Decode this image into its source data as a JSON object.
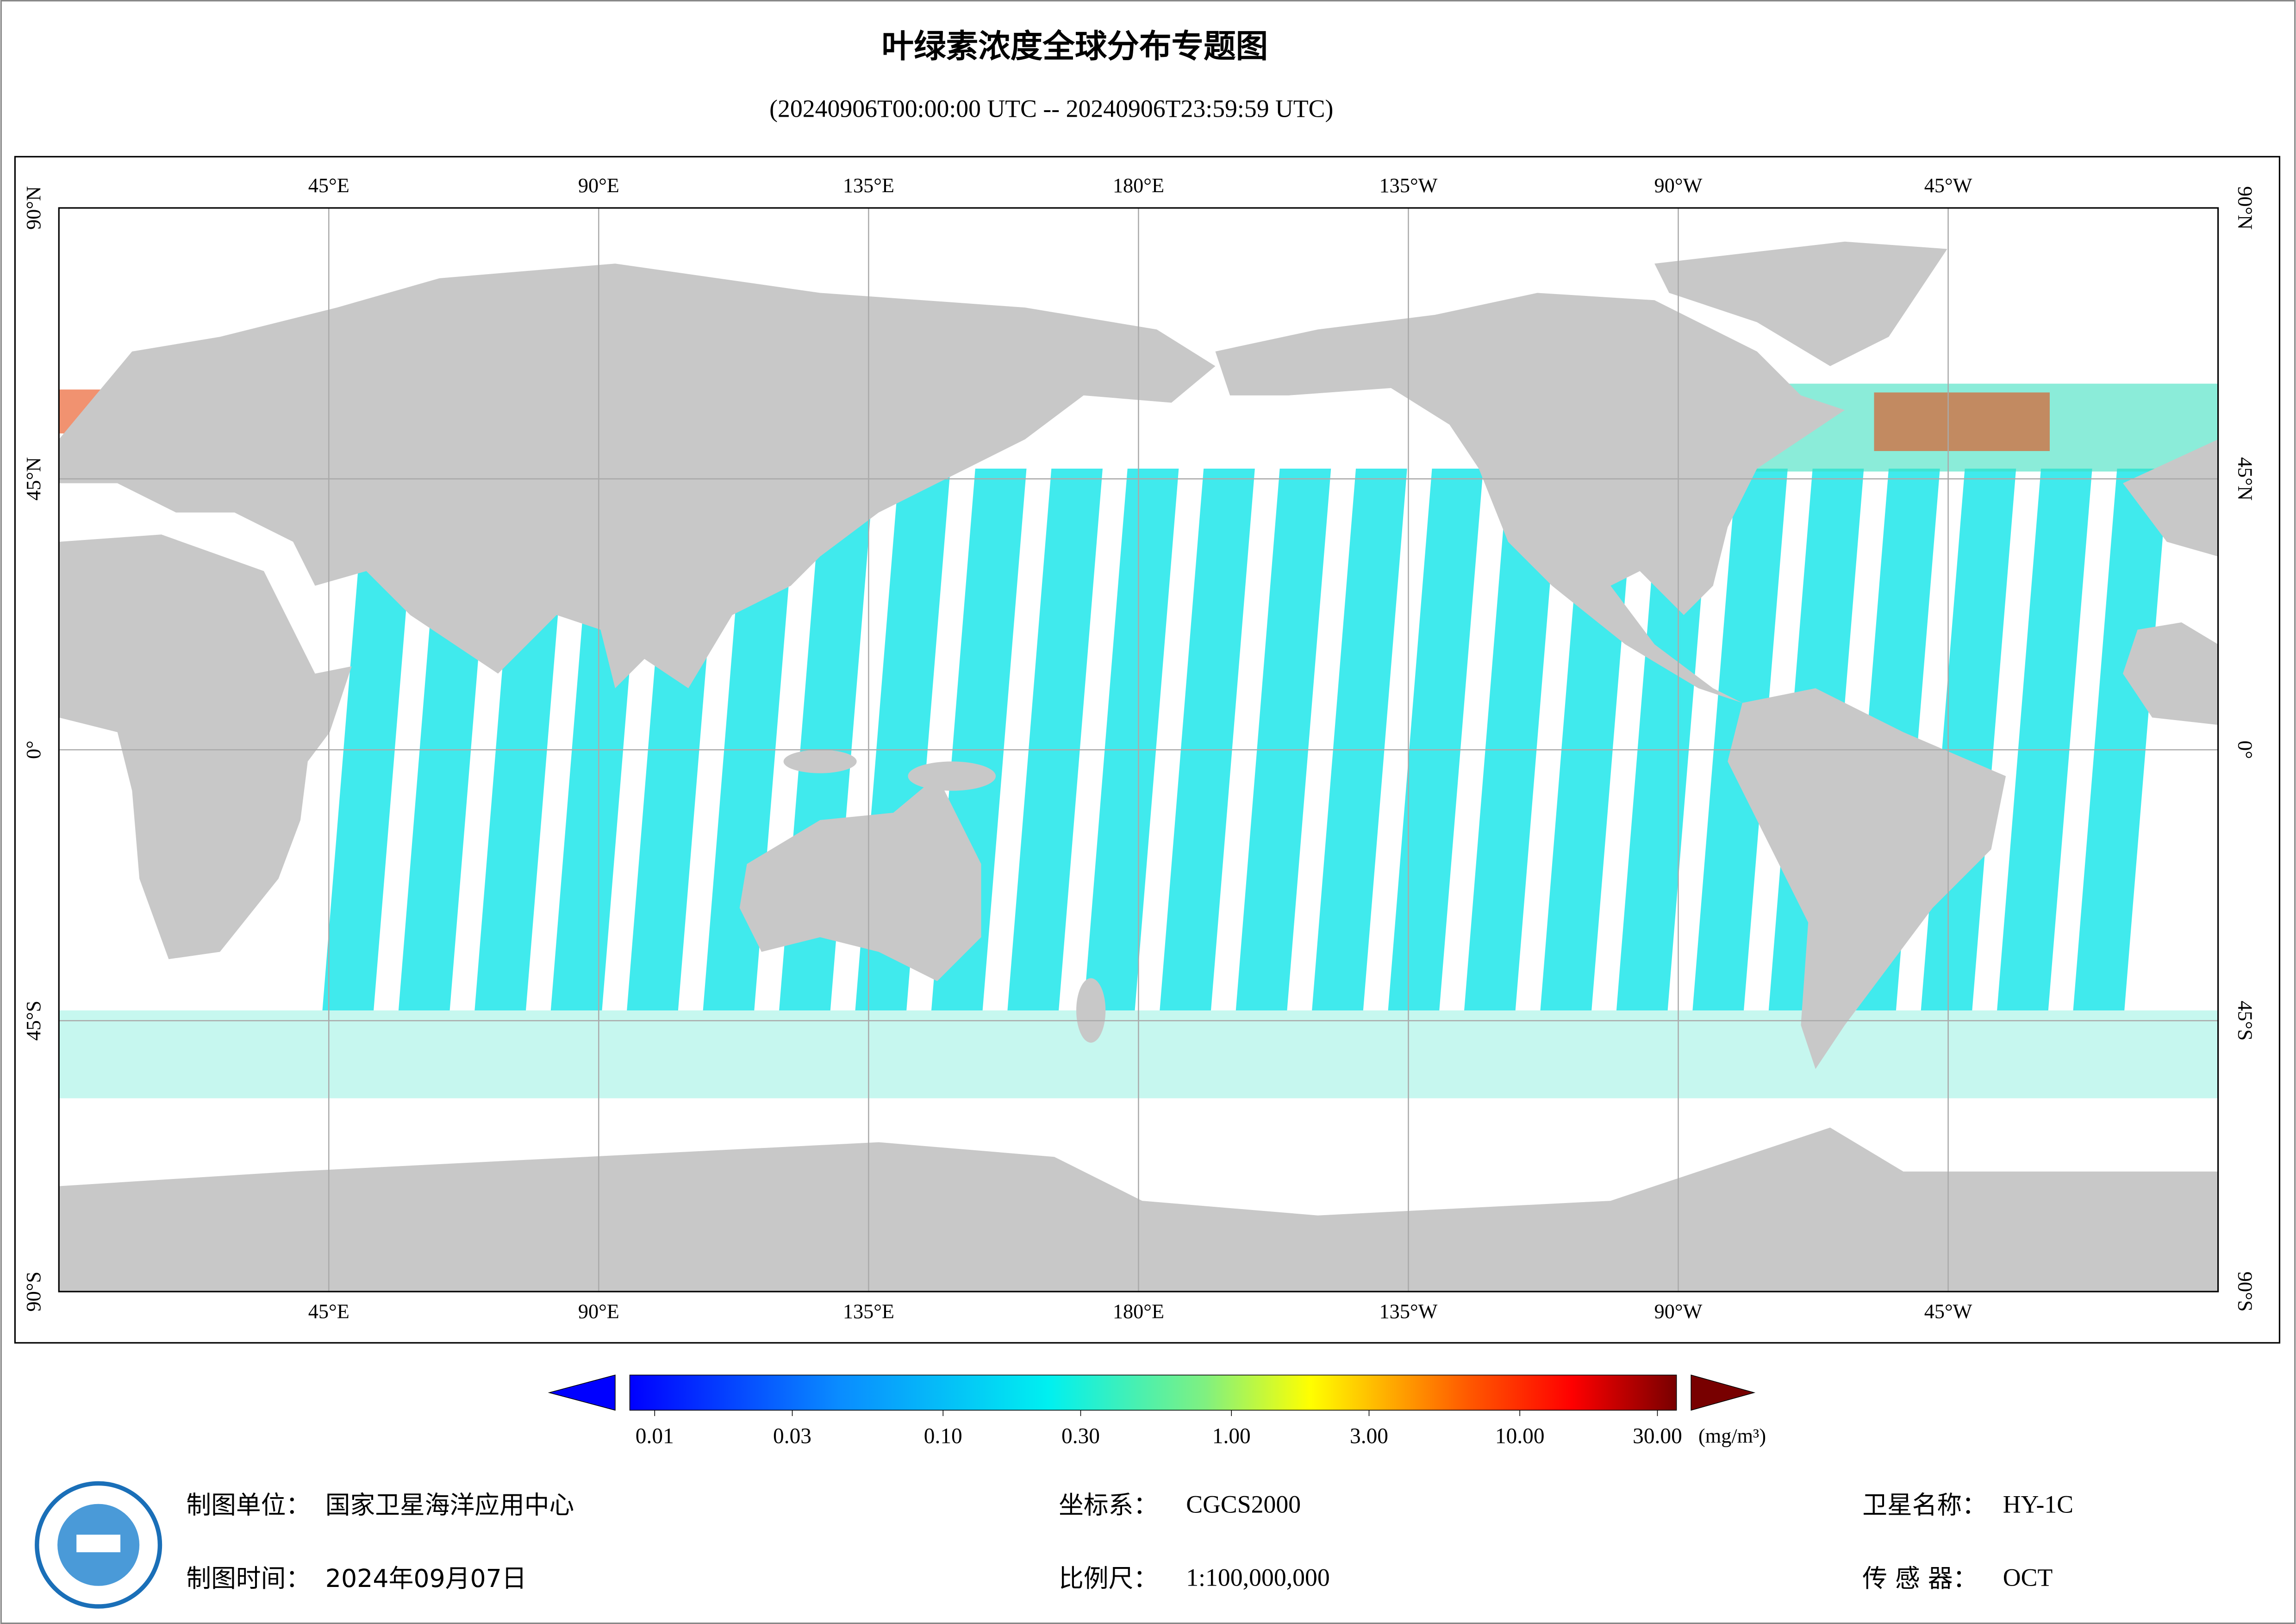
{
  "title": "叶绿素浓度全球分布专题图",
  "subtitle": "(20240906T00:00:00 UTC -- 20240906T23:59:59 UTC)",
  "map": {
    "xlim": [
      0,
      360
    ],
    "ylim": [
      -90,
      90
    ],
    "lon_ticks": [
      {
        "value": 45,
        "label": "45°E"
      },
      {
        "value": 90,
        "label": "90°E"
      },
      {
        "value": 135,
        "label": "135°E"
      },
      {
        "value": 180,
        "label": "180°E"
      },
      {
        "value": 225,
        "label": "135°W"
      },
      {
        "value": 270,
        "label": "90°W"
      },
      {
        "value": 315,
        "label": "45°W"
      }
    ],
    "lat_ticks": [
      {
        "value": 90,
        "label": "90°N"
      },
      {
        "value": 45,
        "label": "45°N"
      },
      {
        "value": 0,
        "label": "0°"
      },
      {
        "value": -45,
        "label": "45°S"
      },
      {
        "value": -90,
        "label": "90°S"
      }
    ]
  },
  "colorbar": {
    "scale": "log",
    "lim": [
      0.01,
      30
    ],
    "ticks": [
      {
        "value": 0.01,
        "label": "0.01"
      },
      {
        "value": 0.03,
        "label": "0.03"
      },
      {
        "value": 0.1,
        "label": "0.10"
      },
      {
        "value": 0.3,
        "label": "0.30"
      },
      {
        "value": 1,
        "label": "1.00"
      },
      {
        "value": 3,
        "label": "3.00"
      },
      {
        "value": 10,
        "label": "10.00"
      },
      {
        "value": 30,
        "label": "30.00"
      }
    ],
    "unit": "(mg/m³)"
  },
  "footer": {
    "unit_label": "制图单位：",
    "unit": "国家卫星海洋应用中心",
    "date_label": "制图时间：",
    "date": "2024年09月07日",
    "crs_label": "坐标系：",
    "crs": "CGCS2000",
    "scale_label": "比例尺：",
    "scale": "1:100,000,000",
    "satellite_label": "卫星名称：",
    "satellite": "HY-1C",
    "sensor_label": "传 感 器：",
    "sensor": "OCT"
  }
}
